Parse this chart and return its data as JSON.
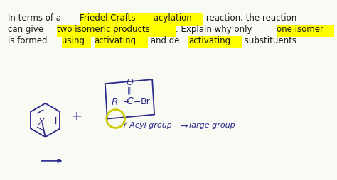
{
  "background_color": "#fafaf5",
  "highlight_yellow": "#ffff00",
  "text_color_black": "#1a1a1a",
  "text_color_blue": "#2a2a8a",
  "font_size_main": 8.5,
  "line1_plain1": "In terms of a ",
  "line1_hl1": "Friedel Crafts",
  "line1_plain2": " acylation",
  "line1_hl2": " reaction",
  "line1_plain3": ", the reaction",
  "line2_plain1": "can give ",
  "line2_hl1": "two isomeric products",
  "line2_plain2": ". Explain why only ",
  "line2_hl2": "one isomer",
  "line3_plain1": "is formed ",
  "line3_hl1": "using",
  "line3_plain2": " ",
  "line3_hl2": "activating",
  "line3_plain3": " and de",
  "line3_hl3": "activating",
  "line3_plain4": " substituents."
}
